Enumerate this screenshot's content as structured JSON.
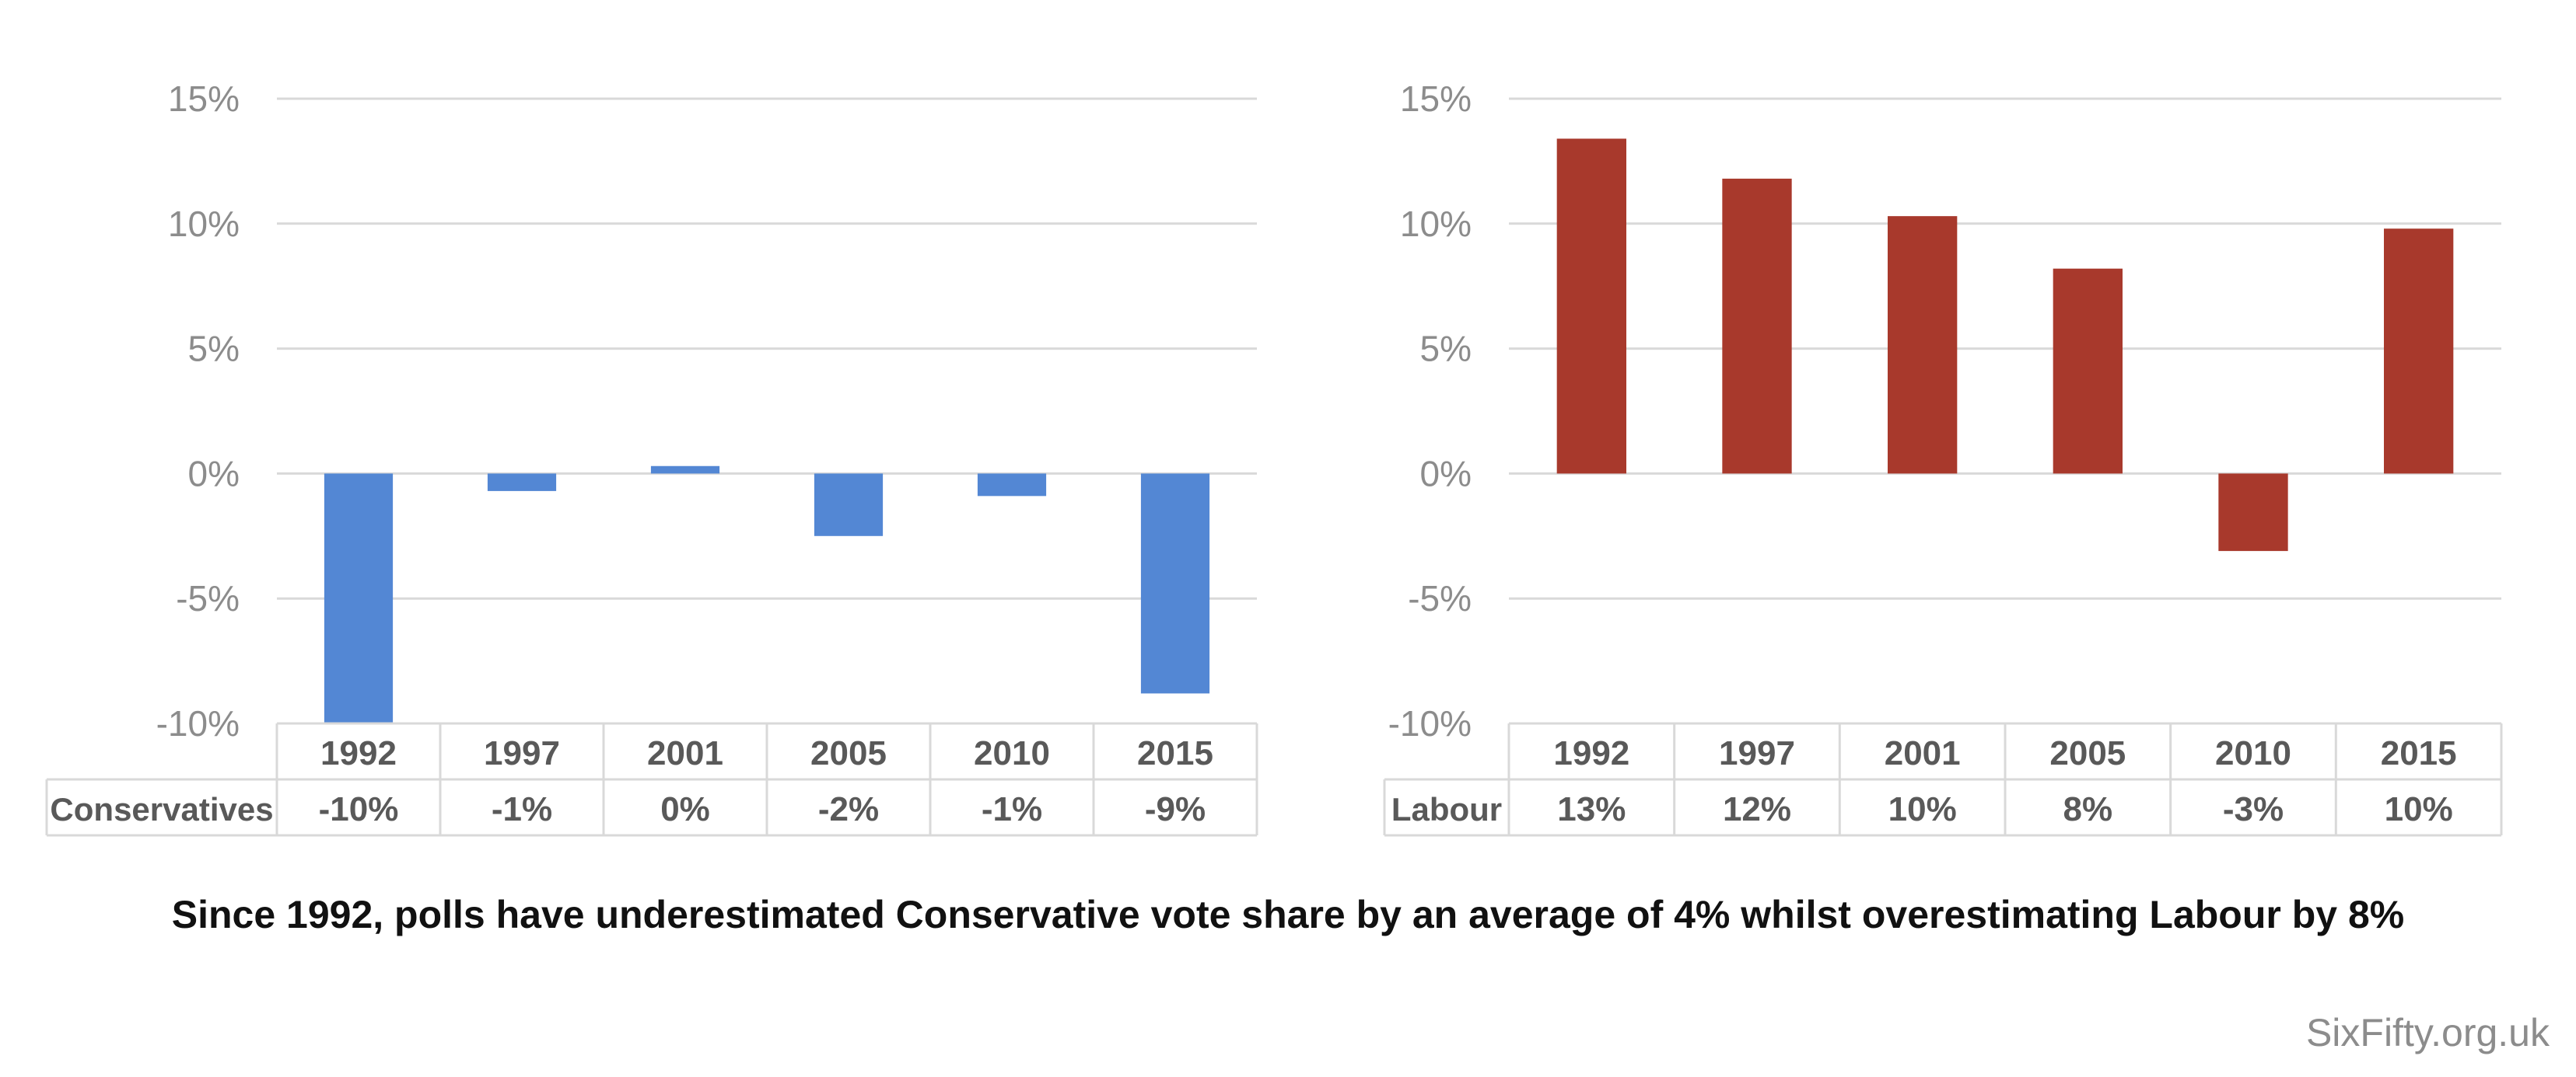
{
  "caption": "Since 1992, polls have underestimated Conservative vote share by an average of 4% whilst overestimating Labour by 8%",
  "credit": "SixFifty.org.uk",
  "chart_data": [
    {
      "type": "bar",
      "categories": [
        "1992",
        "1997",
        "2001",
        "2005",
        "2010",
        "2015"
      ],
      "series": [
        {
          "name": "Conservatives",
          "values": [
            -10.0,
            -0.7,
            0.3,
            -2.5,
            -0.9,
            -8.8
          ],
          "color": "#5387d4"
        }
      ],
      "table_values": [
        "-10%",
        "-1%",
        "0%",
        "-2%",
        "-1%",
        "-9%"
      ],
      "ylim": [
        -10,
        15
      ],
      "yticks": [
        15,
        10,
        5,
        0,
        -5,
        -10
      ],
      "ytick_labels": [
        "15%",
        "10%",
        "5%",
        "0%",
        "-5%",
        "-10%"
      ],
      "grid": true,
      "xlabel": "",
      "ylabel": ""
    },
    {
      "type": "bar",
      "categories": [
        "1992",
        "1997",
        "2001",
        "2005",
        "2010",
        "2015"
      ],
      "series": [
        {
          "name": "Labour",
          "values": [
            13.4,
            11.8,
            10.3,
            8.2,
            -3.1,
            9.8
          ],
          "color": "#a8392c"
        }
      ],
      "table_values": [
        "13%",
        "12%",
        "10%",
        "8%",
        "-3%",
        "10%"
      ],
      "ylim": [
        -10,
        15
      ],
      "yticks": [
        15,
        10,
        5,
        0,
        -5,
        -10
      ],
      "ytick_labels": [
        "15%",
        "10%",
        "5%",
        "0%",
        "-5%",
        "-10%"
      ],
      "grid": true,
      "xlabel": "",
      "ylabel": ""
    }
  ]
}
